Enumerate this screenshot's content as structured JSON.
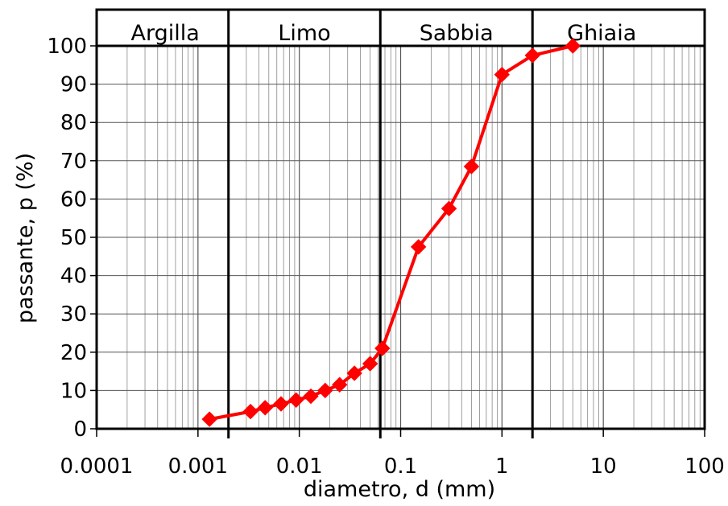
{
  "chart_data": {
    "type": "line",
    "xlabel": "diametro, d (mm)",
    "ylabel": "passante, p (%)",
    "x_scale": "log",
    "xlim": [
      0.0001,
      100
    ],
    "ylim": [
      0,
      100
    ],
    "x_ticks": [
      "0.0001",
      "0.001",
      "0.01",
      "0.1",
      "1",
      "10",
      "100"
    ],
    "y_ticks": [
      "0",
      "10",
      "20",
      "30",
      "40",
      "50",
      "60",
      "70",
      "80",
      "90",
      "100"
    ],
    "grid": true,
    "line_color": "#ff0000",
    "marker": "diamond",
    "soil_classes": [
      {
        "label": "Argilla",
        "from": 0.0001,
        "to": 0.002
      },
      {
        "label": "Limo",
        "from": 0.002,
        "to": 0.063
      },
      {
        "label": "Sabbia",
        "from": 0.063,
        "to": 2
      },
      {
        "label": "Ghiaia",
        "from": 2,
        "to": 100
      }
    ],
    "series": [
      {
        "x": [
          0.0013,
          0.0033,
          0.0046,
          0.0066,
          0.0093,
          0.013,
          0.018,
          0.025,
          0.035,
          0.05,
          0.066,
          0.15,
          0.3,
          0.5,
          1.0,
          2.0,
          5.0
        ],
        "y": [
          2.5,
          4.5,
          5.5,
          6.5,
          7.5,
          8.5,
          10,
          11.5,
          14.5,
          17,
          21,
          47.5,
          57.5,
          68.5,
          92.5,
          97.5,
          100
        ]
      }
    ]
  }
}
